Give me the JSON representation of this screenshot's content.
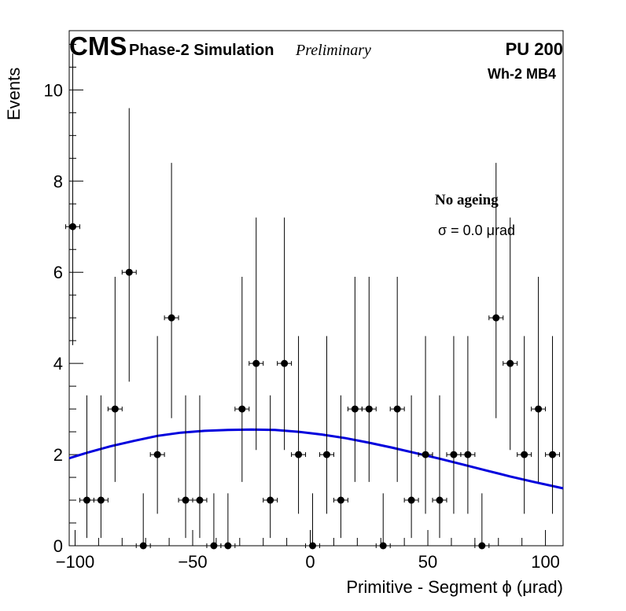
{
  "header": {
    "experiment": "CMS",
    "subtitle": "Phase-2 Simulation",
    "status": "Preliminary",
    "pileup": "PU 200",
    "chamber": "Wh-2 MB4"
  },
  "annotations": {
    "ageing": "No ageing",
    "sigma": "σ = 0.0  μrad"
  },
  "chart_data": {
    "type": "scatter",
    "xlabel": "Primitive - Segment ϕ (μrad)",
    "ylabel": "Events",
    "xlim": [
      -102.5,
      107.5
    ],
    "ylim": [
      0,
      11.3
    ],
    "x_ticks": [
      -100,
      -50,
      0,
      50,
      100
    ],
    "x_tick_labels": [
      "−100",
      "−50",
      "0",
      "50",
      "100"
    ],
    "y_ticks": [
      0,
      2,
      4,
      6,
      8,
      10
    ],
    "y_tick_labels": [
      "0",
      "2",
      "4",
      "6",
      "8",
      "10"
    ],
    "bin_width": 6,
    "grid": false,
    "series": [
      {
        "kind": "points-with-errors",
        "color": "#000000",
        "points": [
          {
            "x": -101,
            "y": 7,
            "lo": 2.6,
            "hi": 3.8
          },
          {
            "x": -95,
            "y": 1,
            "lo": 0.83,
            "hi": 2.3
          },
          {
            "x": -89,
            "y": 1,
            "lo": 0.83,
            "hi": 2.3
          },
          {
            "x": -83,
            "y": 3,
            "lo": 1.6,
            "hi": 2.9
          },
          {
            "x": -77,
            "y": 6,
            "lo": 2.4,
            "hi": 3.6
          },
          {
            "x": -71,
            "y": 0,
            "lo": 0,
            "hi": 1.15
          },
          {
            "x": -65,
            "y": 2,
            "lo": 1.3,
            "hi": 2.6
          },
          {
            "x": -59,
            "y": 5,
            "lo": 2.2,
            "hi": 3.4
          },
          {
            "x": -53,
            "y": 1,
            "lo": 0.83,
            "hi": 2.3
          },
          {
            "x": -47,
            "y": 1,
            "lo": 0.83,
            "hi": 2.3
          },
          {
            "x": -41,
            "y": 0,
            "lo": 0,
            "hi": 1.15
          },
          {
            "x": -35,
            "y": 0,
            "lo": 0,
            "hi": 1.15
          },
          {
            "x": -29,
            "y": 3,
            "lo": 1.6,
            "hi": 2.9
          },
          {
            "x": -23,
            "y": 4,
            "lo": 1.9,
            "hi": 3.2
          },
          {
            "x": -17,
            "y": 1,
            "lo": 0.83,
            "hi": 2.3
          },
          {
            "x": -11,
            "y": 4,
            "lo": 1.9,
            "hi": 3.2
          },
          {
            "x": -5,
            "y": 2,
            "lo": 1.3,
            "hi": 2.6
          },
          {
            "x": 1,
            "y": 0,
            "lo": 0,
            "hi": 1.15
          },
          {
            "x": 7,
            "y": 2,
            "lo": 1.3,
            "hi": 2.6
          },
          {
            "x": 13,
            "y": 1,
            "lo": 0.83,
            "hi": 2.3
          },
          {
            "x": 19,
            "y": 3,
            "lo": 1.6,
            "hi": 2.9
          },
          {
            "x": 25,
            "y": 3,
            "lo": 1.6,
            "hi": 2.9
          },
          {
            "x": 31,
            "y": 0,
            "lo": 0,
            "hi": 1.15
          },
          {
            "x": 37,
            "y": 3,
            "lo": 1.6,
            "hi": 2.9
          },
          {
            "x": 43,
            "y": 1,
            "lo": 0.83,
            "hi": 2.3
          },
          {
            "x": 49,
            "y": 2,
            "lo": 1.3,
            "hi": 2.6
          },
          {
            "x": 55,
            "y": 1,
            "lo": 0.83,
            "hi": 2.3
          },
          {
            "x": 61,
            "y": 2,
            "lo": 1.3,
            "hi": 2.6
          },
          {
            "x": 67,
            "y": 2,
            "lo": 1.3,
            "hi": 2.6
          },
          {
            "x": 73,
            "y": 0,
            "lo": 0,
            "hi": 1.15
          },
          {
            "x": 79,
            "y": 5,
            "lo": 2.2,
            "hi": 3.4
          },
          {
            "x": 85,
            "y": 4,
            "lo": 1.9,
            "hi": 3.2
          },
          {
            "x": 91,
            "y": 2,
            "lo": 1.3,
            "hi": 2.6
          },
          {
            "x": 97,
            "y": 3,
            "lo": 1.6,
            "hi": 2.9
          },
          {
            "x": 103,
            "y": 2,
            "lo": 1.3,
            "hi": 2.6
          }
        ]
      },
      {
        "kind": "fit-curve",
        "color": "#0000dd",
        "x": [
          -102.5,
          -95,
          -85,
          -75,
          -65,
          -55,
          -45,
          -35,
          -25,
          -15,
          -5,
          5,
          15,
          25,
          35,
          45,
          55,
          65,
          75,
          85,
          95,
          107.5
        ],
        "y": [
          1.92,
          2.04,
          2.18,
          2.3,
          2.41,
          2.48,
          2.52,
          2.54,
          2.55,
          2.54,
          2.5,
          2.44,
          2.36,
          2.26,
          2.15,
          2.03,
          1.91,
          1.78,
          1.65,
          1.52,
          1.4,
          1.26
        ]
      }
    ]
  }
}
